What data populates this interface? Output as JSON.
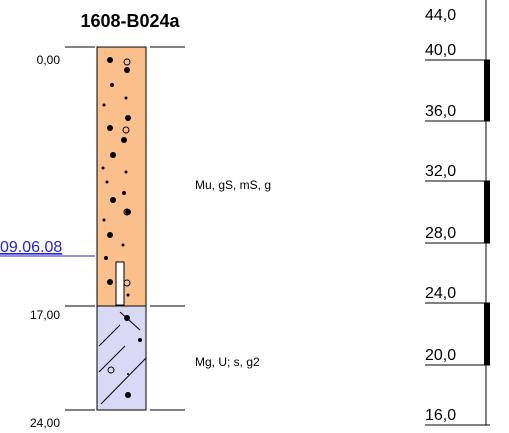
{
  "title": "1608-B024a",
  "depths": [
    "0,00",
    "17,00",
    "24,00"
  ],
  "date": "09.06.08",
  "layers": [
    {
      "label": "Mu, gS, mS, g"
    },
    {
      "label": "Mg, U; s, g2"
    }
  ],
  "scale": [
    "44,0",
    "40,0",
    "36,0",
    "32,0",
    "28,0",
    "24,0",
    "20,0",
    "16,0"
  ]
}
